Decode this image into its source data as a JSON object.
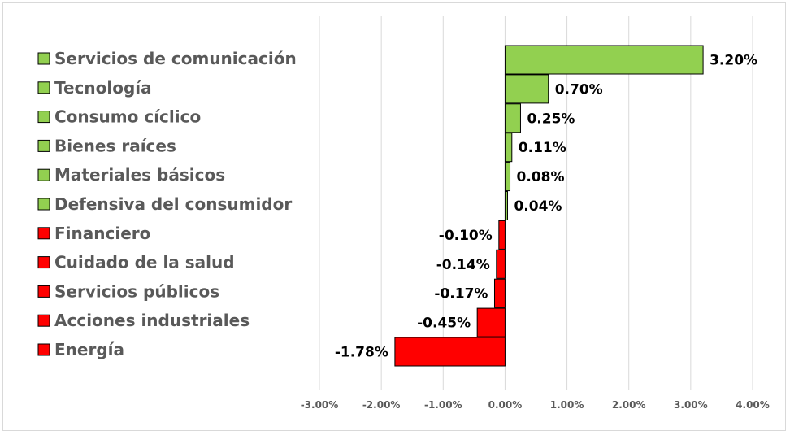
{
  "chart_data": {
    "type": "bar",
    "orientation": "horizontal",
    "categories": [
      "Servicios de comunicación",
      "Tecnología",
      "Consumo cíclico",
      "Bienes raíces",
      "Materiales básicos",
      "Defensiva del consumidor",
      "Financiero",
      "Cuidado de la salud",
      "Servicios públicos",
      "Acciones industriales",
      "Energía"
    ],
    "values": [
      3.2,
      0.7,
      0.25,
      0.11,
      0.08,
      0.04,
      -0.1,
      -0.14,
      -0.17,
      -0.45,
      -1.78
    ],
    "data_labels": [
      "3.20%",
      "0.70%",
      "0.25%",
      "0.11%",
      "0.08%",
      "0.04%",
      "-0.10%",
      "-0.14%",
      "-0.17%",
      "-0.45%",
      "-1.78%"
    ],
    "xlim": [
      -3,
      4
    ],
    "xticks": [
      -3,
      -2,
      -1,
      0,
      1,
      2,
      3,
      4
    ],
    "xtick_labels": [
      "-3.00%",
      "-2.00%",
      "-1.00%",
      "0.00%",
      "1.00%",
      "2.00%",
      "3.00%",
      "4.00%"
    ],
    "title": "",
    "xlabel": "",
    "ylabel": "",
    "grid": "vertical",
    "legend": "left",
    "colors": {
      "positive": "#92d050",
      "negative": "#ff0000",
      "bar_border": "#000000",
      "grid": "#d9d9d9",
      "text": "#595959"
    }
  }
}
